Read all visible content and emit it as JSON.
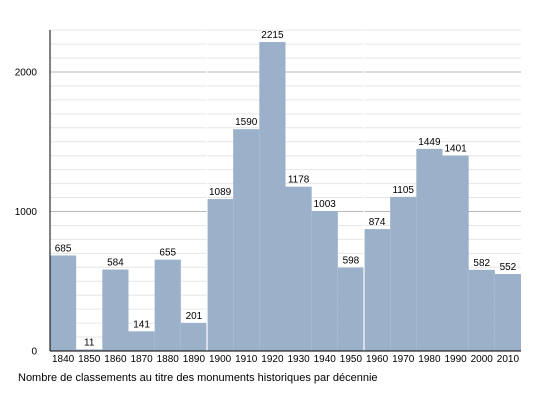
{
  "chart_data": {
    "type": "bar",
    "title": "",
    "xlabel": "",
    "ylabel": "",
    "caption": "Nombre de classements au titre des monuments historiques par décennie",
    "categories": [
      "1840",
      "1850",
      "1860",
      "1870",
      "1880",
      "1890",
      "1900",
      "1910",
      "1920",
      "1930",
      "1940",
      "1950",
      "1960",
      "1970",
      "1980",
      "1990",
      "2000",
      "2010"
    ],
    "values": [
      685,
      11,
      584,
      141,
      655,
      201,
      1089,
      1590,
      2215,
      1178,
      1003,
      598,
      874,
      1105,
      1449,
      1401,
      582,
      552
    ],
    "yticks": [
      0,
      1000,
      2000
    ],
    "ylim": [
      0,
      2300
    ],
    "grid": true,
    "colors": {
      "bar": "#9ab1c9",
      "bar_separator": "#ffffff",
      "grid_major": "#b8b8b8",
      "grid_minor": "#e6e6e6",
      "axis": "#000000",
      "text": "#000000"
    }
  }
}
